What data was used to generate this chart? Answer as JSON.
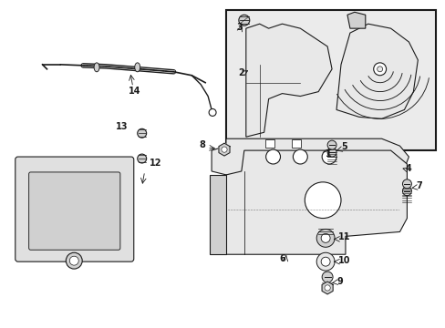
{
  "bg_color": "#ffffff",
  "line_color": "#1a1a1a",
  "shade_color": "#e8e8e8",
  "shade_dark": "#d0d0d0",
  "fig_width": 4.89,
  "fig_height": 3.6,
  "dpi": 100
}
